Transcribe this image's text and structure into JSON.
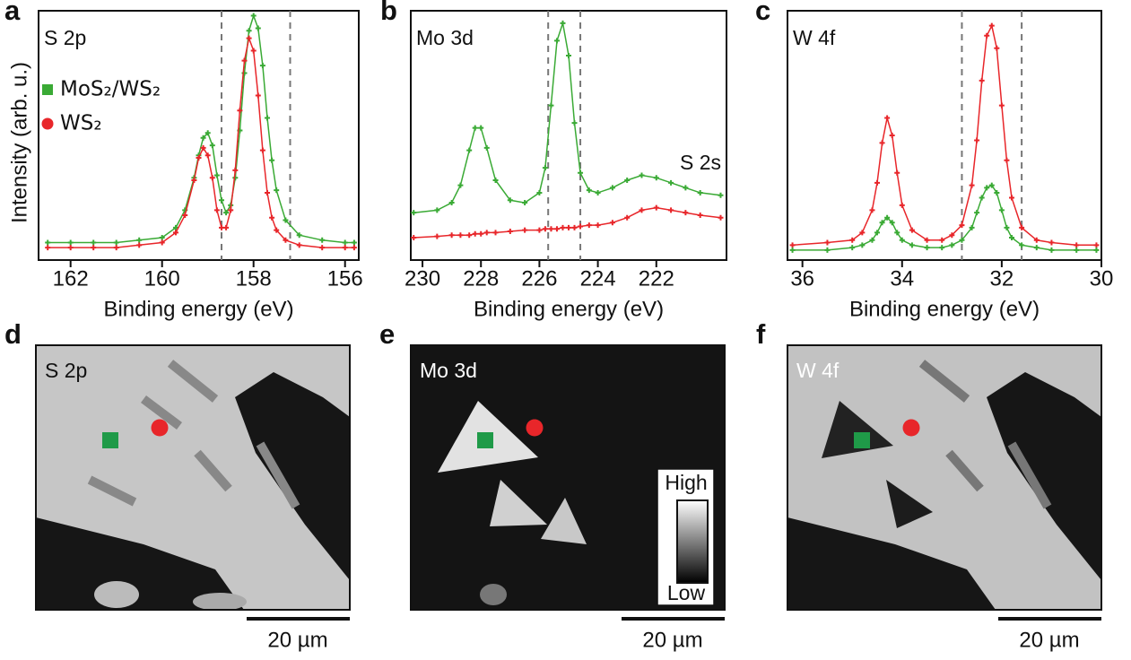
{
  "chart_data": [
    {
      "type": "line",
      "panel": "a",
      "panel_title": "S 2p",
      "xlabel": "Binding energy (eV)",
      "ylabel": "Intensity (arb. u.)",
      "xlim": [
        162.7,
        155.7
      ],
      "ylim": [
        0,
        1
      ],
      "xticks": [
        162,
        160,
        158,
        156
      ],
      "vlines": [
        158.7,
        157.2
      ],
      "legend": "upper left",
      "x": [
        162.5,
        162,
        161.5,
        161,
        160.5,
        160,
        159.7,
        159.5,
        159.3,
        159.2,
        159.1,
        159.0,
        158.9,
        158.8,
        158.7,
        158.6,
        158.5,
        158.4,
        158.3,
        158.2,
        158.1,
        158.0,
        157.9,
        157.8,
        157.7,
        157.6,
        157.5,
        157.3,
        157,
        156.5,
        156,
        155.8
      ],
      "series": [
        {
          "name": "MoS₂/WS₂",
          "color": "#3aaa35",
          "marker": "square",
          "values": [
            0.07,
            0.07,
            0.07,
            0.07,
            0.08,
            0.09,
            0.13,
            0.2,
            0.33,
            0.42,
            0.49,
            0.51,
            0.46,
            0.34,
            0.24,
            0.19,
            0.22,
            0.33,
            0.52,
            0.75,
            0.92,
            0.98,
            0.93,
            0.78,
            0.57,
            0.4,
            0.28,
            0.16,
            0.1,
            0.08,
            0.07,
            0.07
          ]
        },
        {
          "name": "WS₂",
          "color": "#e8262a",
          "marker": "circle",
          "values": [
            0.05,
            0.05,
            0.05,
            0.05,
            0.06,
            0.07,
            0.11,
            0.18,
            0.32,
            0.41,
            0.45,
            0.42,
            0.33,
            0.2,
            0.13,
            0.13,
            0.2,
            0.36,
            0.6,
            0.8,
            0.89,
            0.84,
            0.66,
            0.44,
            0.27,
            0.17,
            0.12,
            0.08,
            0.06,
            0.05,
            0.05,
            0.05
          ]
        }
      ]
    },
    {
      "type": "line",
      "panel": "b",
      "panel_title": "Mo 3d",
      "annotations": [
        "S 2s"
      ],
      "xlabel": "Binding energy (eV)",
      "xlim": [
        230.4,
        219.6
      ],
      "ylim": [
        0,
        1
      ],
      "xticks": [
        230,
        228,
        226,
        224,
        222
      ],
      "vlines": [
        225.7,
        224.6
      ],
      "x": [
        230.3,
        229.5,
        229,
        228.7,
        228.4,
        228.2,
        228.0,
        227.8,
        227.5,
        227,
        226.5,
        226,
        225.8,
        225.6,
        225.4,
        225.2,
        225.0,
        224.8,
        224.6,
        224.3,
        224,
        223.5,
        223,
        222.5,
        222,
        221.5,
        221,
        220.5,
        219.8
      ],
      "series": [
        {
          "color": "#3aaa35",
          "values": [
            0.19,
            0.2,
            0.23,
            0.3,
            0.44,
            0.53,
            0.53,
            0.45,
            0.32,
            0.24,
            0.23,
            0.27,
            0.37,
            0.62,
            0.88,
            0.95,
            0.82,
            0.55,
            0.35,
            0.28,
            0.27,
            0.29,
            0.32,
            0.34,
            0.33,
            0.31,
            0.29,
            0.27,
            0.26
          ]
        },
        {
          "color": "#e8262a",
          "values": [
            0.09,
            0.095,
            0.1,
            0.1,
            0.1,
            0.105,
            0.105,
            0.11,
            0.11,
            0.115,
            0.12,
            0.12,
            0.125,
            0.125,
            0.125,
            0.13,
            0.13,
            0.13,
            0.135,
            0.14,
            0.14,
            0.15,
            0.17,
            0.2,
            0.21,
            0.2,
            0.19,
            0.18,
            0.17
          ]
        }
      ]
    },
    {
      "type": "line",
      "panel": "c",
      "panel_title": "W 4f",
      "xlabel": "Binding energy (eV)",
      "xlim": [
        36.3,
        30
      ],
      "ylim": [
        0,
        1
      ],
      "xticks": [
        36,
        34,
        32,
        30
      ],
      "vlines": [
        32.8,
        31.6
      ],
      "x": [
        36.2,
        35.5,
        35,
        34.8,
        34.6,
        34.5,
        34.4,
        34.3,
        34.2,
        34.1,
        34.0,
        33.8,
        33.5,
        33.2,
        33,
        32.8,
        32.6,
        32.5,
        32.4,
        32.3,
        32.2,
        32.1,
        32.0,
        31.9,
        31.8,
        31.6,
        31.3,
        31,
        30.5,
        30.1
      ],
      "series": [
        {
          "color": "#e8262a",
          "values": [
            0.06,
            0.07,
            0.08,
            0.11,
            0.2,
            0.31,
            0.47,
            0.57,
            0.5,
            0.35,
            0.22,
            0.12,
            0.08,
            0.08,
            0.1,
            0.14,
            0.3,
            0.48,
            0.72,
            0.9,
            0.94,
            0.85,
            0.62,
            0.4,
            0.25,
            0.13,
            0.08,
            0.07,
            0.06,
            0.06
          ]
        },
        {
          "color": "#3aaa35",
          "values": [
            0.04,
            0.04,
            0.05,
            0.06,
            0.08,
            0.11,
            0.15,
            0.17,
            0.15,
            0.11,
            0.08,
            0.06,
            0.05,
            0.05,
            0.06,
            0.08,
            0.13,
            0.19,
            0.25,
            0.29,
            0.3,
            0.27,
            0.2,
            0.13,
            0.09,
            0.06,
            0.05,
            0.04,
            0.04,
            0.04
          ]
        }
      ]
    }
  ],
  "images": [
    {
      "panel": "d",
      "title": "S 2p",
      "scale_bar": "20 µm"
    },
    {
      "panel": "e",
      "title": "Mo 3d",
      "scale_bar": "20 µm",
      "colorbar": {
        "high": "High",
        "low": "Low"
      }
    },
    {
      "panel": "f",
      "title": "W 4f",
      "scale_bar": "20 µm"
    }
  ]
}
